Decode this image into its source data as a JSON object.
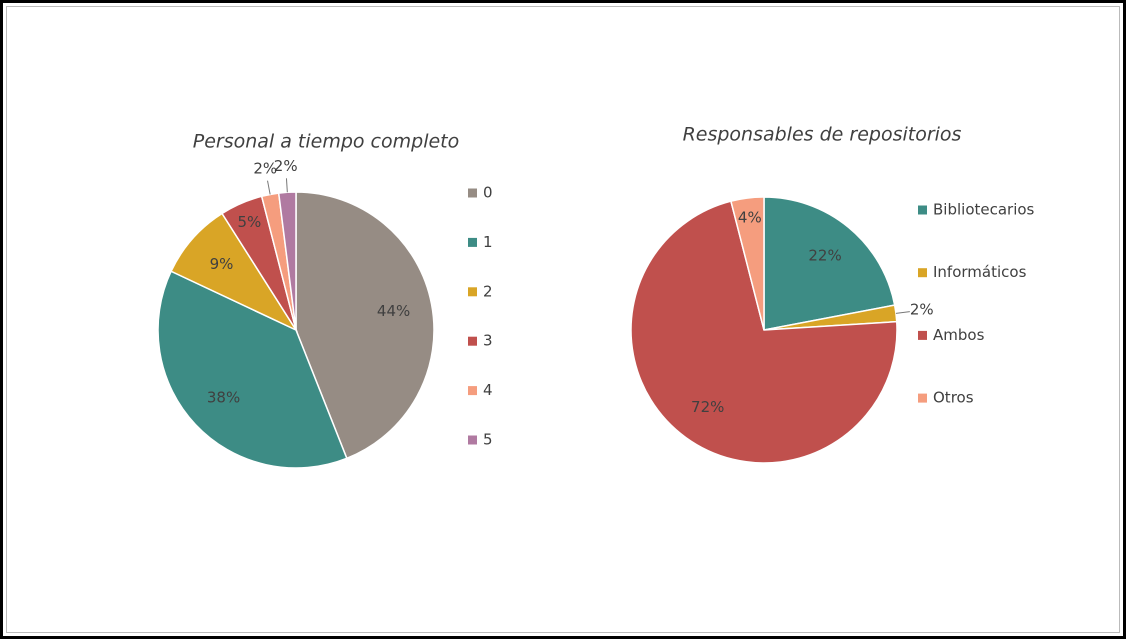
{
  "chart_data": [
    {
      "type": "pie",
      "title": "Personal a tiempo completo",
      "categories": [
        "0",
        "1",
        "2",
        "3",
        "4",
        "5"
      ],
      "values": [
        44,
        38,
        9,
        5,
        2,
        2
      ],
      "value_labels": [
        "44%",
        "38%",
        "9%",
        "5%",
        "2%",
        "2%"
      ],
      "colors": [
        "#968c84",
        "#3d8c85",
        "#d9a526",
        "#c0504d",
        "#f59d7e",
        "#b07aa1"
      ],
      "legend": "right"
    },
    {
      "type": "pie",
      "title": "Responsables de repositorios",
      "categories": [
        "Bibliotecarios",
        "Informáticos",
        "Ambos",
        "Otros"
      ],
      "values": [
        22,
        2,
        72,
        4
      ],
      "value_labels": [
        "22%",
        "2%",
        "72%",
        "4%"
      ],
      "colors": [
        "#3d8c85",
        "#d9a526",
        "#c0504d",
        "#f59d7e"
      ],
      "legend": "right"
    }
  ]
}
